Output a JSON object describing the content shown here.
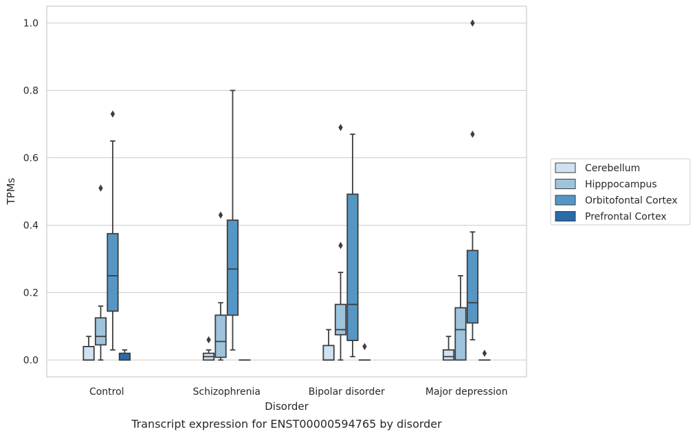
{
  "chart_data": {
    "type": "box",
    "title": "",
    "caption": "Transcript expression for ENST00000594765 by disorder",
    "xlabel": "Disorder",
    "ylabel": "TPMs",
    "ylim": [
      -0.05,
      1.05
    ],
    "yticks": [
      0.0,
      0.2,
      0.4,
      0.6,
      0.8,
      1.0
    ],
    "ytick_labels": [
      "0.0",
      "0.2",
      "0.4",
      "0.6",
      "0.8",
      "1.0"
    ],
    "grid": "horizontal",
    "legend_position": "right",
    "categories": [
      "Control",
      "Schizophrenia",
      "Bipolar disorder",
      "Major depression"
    ],
    "series": [
      {
        "name": "Cerebellum",
        "color": "#d0e1f2",
        "boxes": [
          {
            "q1": 0.0,
            "median": 0.0,
            "q3": 0.04,
            "whisker_low": 0.0,
            "whisker_high": 0.07,
            "outliers": []
          },
          {
            "q1": 0.0,
            "median": 0.01,
            "q3": 0.02,
            "whisker_low": 0.0,
            "whisker_high": 0.03,
            "outliers": [
              0.06
            ]
          },
          {
            "q1": 0.0,
            "median": 0.0,
            "q3": 0.043,
            "whisker_low": 0.0,
            "whisker_high": 0.09,
            "outliers": []
          },
          {
            "q1": 0.0,
            "median": 0.01,
            "q3": 0.03,
            "whisker_low": 0.0,
            "whisker_high": 0.07,
            "outliers": []
          }
        ]
      },
      {
        "name": "Hipppocampus",
        "color": "#9dc4dc",
        "boxes": [
          {
            "q1": 0.045,
            "median": 0.07,
            "q3": 0.125,
            "whisker_low": 0.0,
            "whisker_high": 0.16,
            "outliers": [
              0.51
            ]
          },
          {
            "q1": 0.008,
            "median": 0.055,
            "q3": 0.133,
            "whisker_low": 0.0,
            "whisker_high": 0.17,
            "outliers": [
              0.43
            ]
          },
          {
            "q1": 0.075,
            "median": 0.09,
            "q3": 0.165,
            "whisker_low": 0.0,
            "whisker_high": 0.26,
            "outliers": [
              0.34,
              0.69
            ]
          },
          {
            "q1": 0.0,
            "median": 0.09,
            "q3": 0.155,
            "whisker_low": 0.0,
            "whisker_high": 0.25,
            "outliers": []
          }
        ]
      },
      {
        "name": "Orbitofontal Cortex",
        "color": "#5596c4",
        "boxes": [
          {
            "q1": 0.145,
            "median": 0.25,
            "q3": 0.375,
            "whisker_low": 0.03,
            "whisker_high": 0.65,
            "outliers": [
              0.73
            ]
          },
          {
            "q1": 0.133,
            "median": 0.27,
            "q3": 0.415,
            "whisker_low": 0.03,
            "whisker_high": 0.8,
            "outliers": []
          },
          {
            "q1": 0.058,
            "median": 0.165,
            "q3": 0.492,
            "whisker_low": 0.01,
            "whisker_high": 0.67,
            "outliers": []
          },
          {
            "q1": 0.11,
            "median": 0.17,
            "q3": 0.325,
            "whisker_low": 0.06,
            "whisker_high": 0.38,
            "outliers": [
              0.67,
              1.0
            ]
          }
        ]
      },
      {
        "name": "Prefrontal Cortex",
        "color": "#2a6aaa",
        "boxes": [
          {
            "q1": 0.0,
            "median": 0.0,
            "q3": 0.02,
            "whisker_low": 0.0,
            "whisker_high": 0.03,
            "outliers": []
          },
          {
            "q1": 0.0,
            "median": 0.0,
            "q3": 0.0,
            "whisker_low": 0.0,
            "whisker_high": 0.0,
            "outliers": []
          },
          {
            "q1": 0.0,
            "median": 0.0,
            "q3": 0.0,
            "whisker_low": 0.0,
            "whisker_high": 0.0,
            "outliers": [
              0.04
            ]
          },
          {
            "q1": 0.0,
            "median": 0.0,
            "q3": 0.0,
            "whisker_low": 0.0,
            "whisker_high": 0.0,
            "outliers": [
              0.02
            ]
          }
        ]
      }
    ]
  }
}
